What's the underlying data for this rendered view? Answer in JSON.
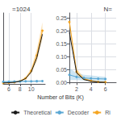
{
  "chart_data": [
    {
      "type": "line",
      "title": "=1024",
      "xlabel": "Number of Bits (K)",
      "x": [
        5,
        6,
        7,
        8,
        9,
        10,
        11,
        12
      ],
      "xlim": [
        5,
        12.5
      ],
      "xticks": [
        6,
        8,
        10
      ],
      "ylim": [
        0,
        0.6
      ],
      "tick_labels": "x",
      "grid": true,
      "legend": "bottom",
      "series": [
        {
          "name": "Theoretical",
          "color": "#1a1a1a",
          "marker": "none",
          "values": [
            0.008,
            0.01,
            0.013,
            0.022,
            0.045,
            0.1,
            0.22,
            0.42
          ]
        },
        {
          "name": "Decoder",
          "color": "#5ba8d4",
          "marker": "circle",
          "values": [
            0.018,
            0.019,
            0.02,
            0.021,
            0.022,
            0.022,
            0.023,
            0.024
          ],
          "low": [
            0.012,
            0.013,
            0.014,
            0.015,
            0.016,
            0.016,
            0.017,
            0.018
          ],
          "high": [
            0.024,
            0.025,
            0.026,
            0.027,
            0.028,
            0.028,
            0.029,
            0.03
          ]
        },
        {
          "name": "Ri",
          "color": "#f5a623",
          "marker": "circle",
          "values": [
            0.008,
            0.01,
            0.014,
            0.024,
            0.048,
            0.11,
            0.24,
            0.45
          ],
          "low": [
            0.005,
            0.007,
            0.01,
            0.018,
            0.038,
            0.088,
            0.19,
            0.38
          ],
          "high": [
            0.011,
            0.013,
            0.018,
            0.03,
            0.058,
            0.132,
            0.29,
            0.52
          ]
        }
      ]
    },
    {
      "type": "line",
      "title": "N=",
      "x": [
        1,
        2,
        3,
        4,
        5,
        6
      ],
      "xlim": [
        1,
        7.5
      ],
      "xticks": [
        2,
        4,
        6
      ],
      "ylim": [
        -0.005,
        0.27
      ],
      "yticks": [
        {
          "value": 0.0,
          "label": "0.00"
        },
        0.05,
        {
          "value": 0.1,
          "label": "0.10"
        },
        0.15,
        {
          "value": 0.2,
          "label": "0.20"
        },
        0.25
      ],
      "grid": true,
      "series": [
        {
          "name": "Theoretical",
          "color": "#1a1a1a",
          "marker": "none",
          "values": [
            0.195,
            0.038,
            0.012,
            0.005,
            0.002,
            0.001
          ]
        },
        {
          "name": "Decoder",
          "color": "#5ba8d4",
          "marker": "circle",
          "values": [
            0.03,
            0.022,
            0.018,
            0.016,
            0.015,
            0.014
          ],
          "low": [
            0.01,
            0.01,
            0.008,
            0.007,
            0.006,
            0.005
          ],
          "high": [
            0.055,
            0.038,
            0.03,
            0.028,
            0.025,
            0.022
          ]
        },
        {
          "name": "Ri",
          "color": "#f5a623",
          "marker": "circle",
          "values": [
            0.235,
            0.042,
            0.015,
            0.007,
            0.003,
            0.002
          ],
          "low": [
            0.22,
            0.03,
            0.01,
            0.004,
            0.002,
            0.001
          ],
          "high": [
            0.25,
            0.054,
            0.02,
            0.01,
            0.005,
            0.003
          ]
        }
      ]
    }
  ]
}
